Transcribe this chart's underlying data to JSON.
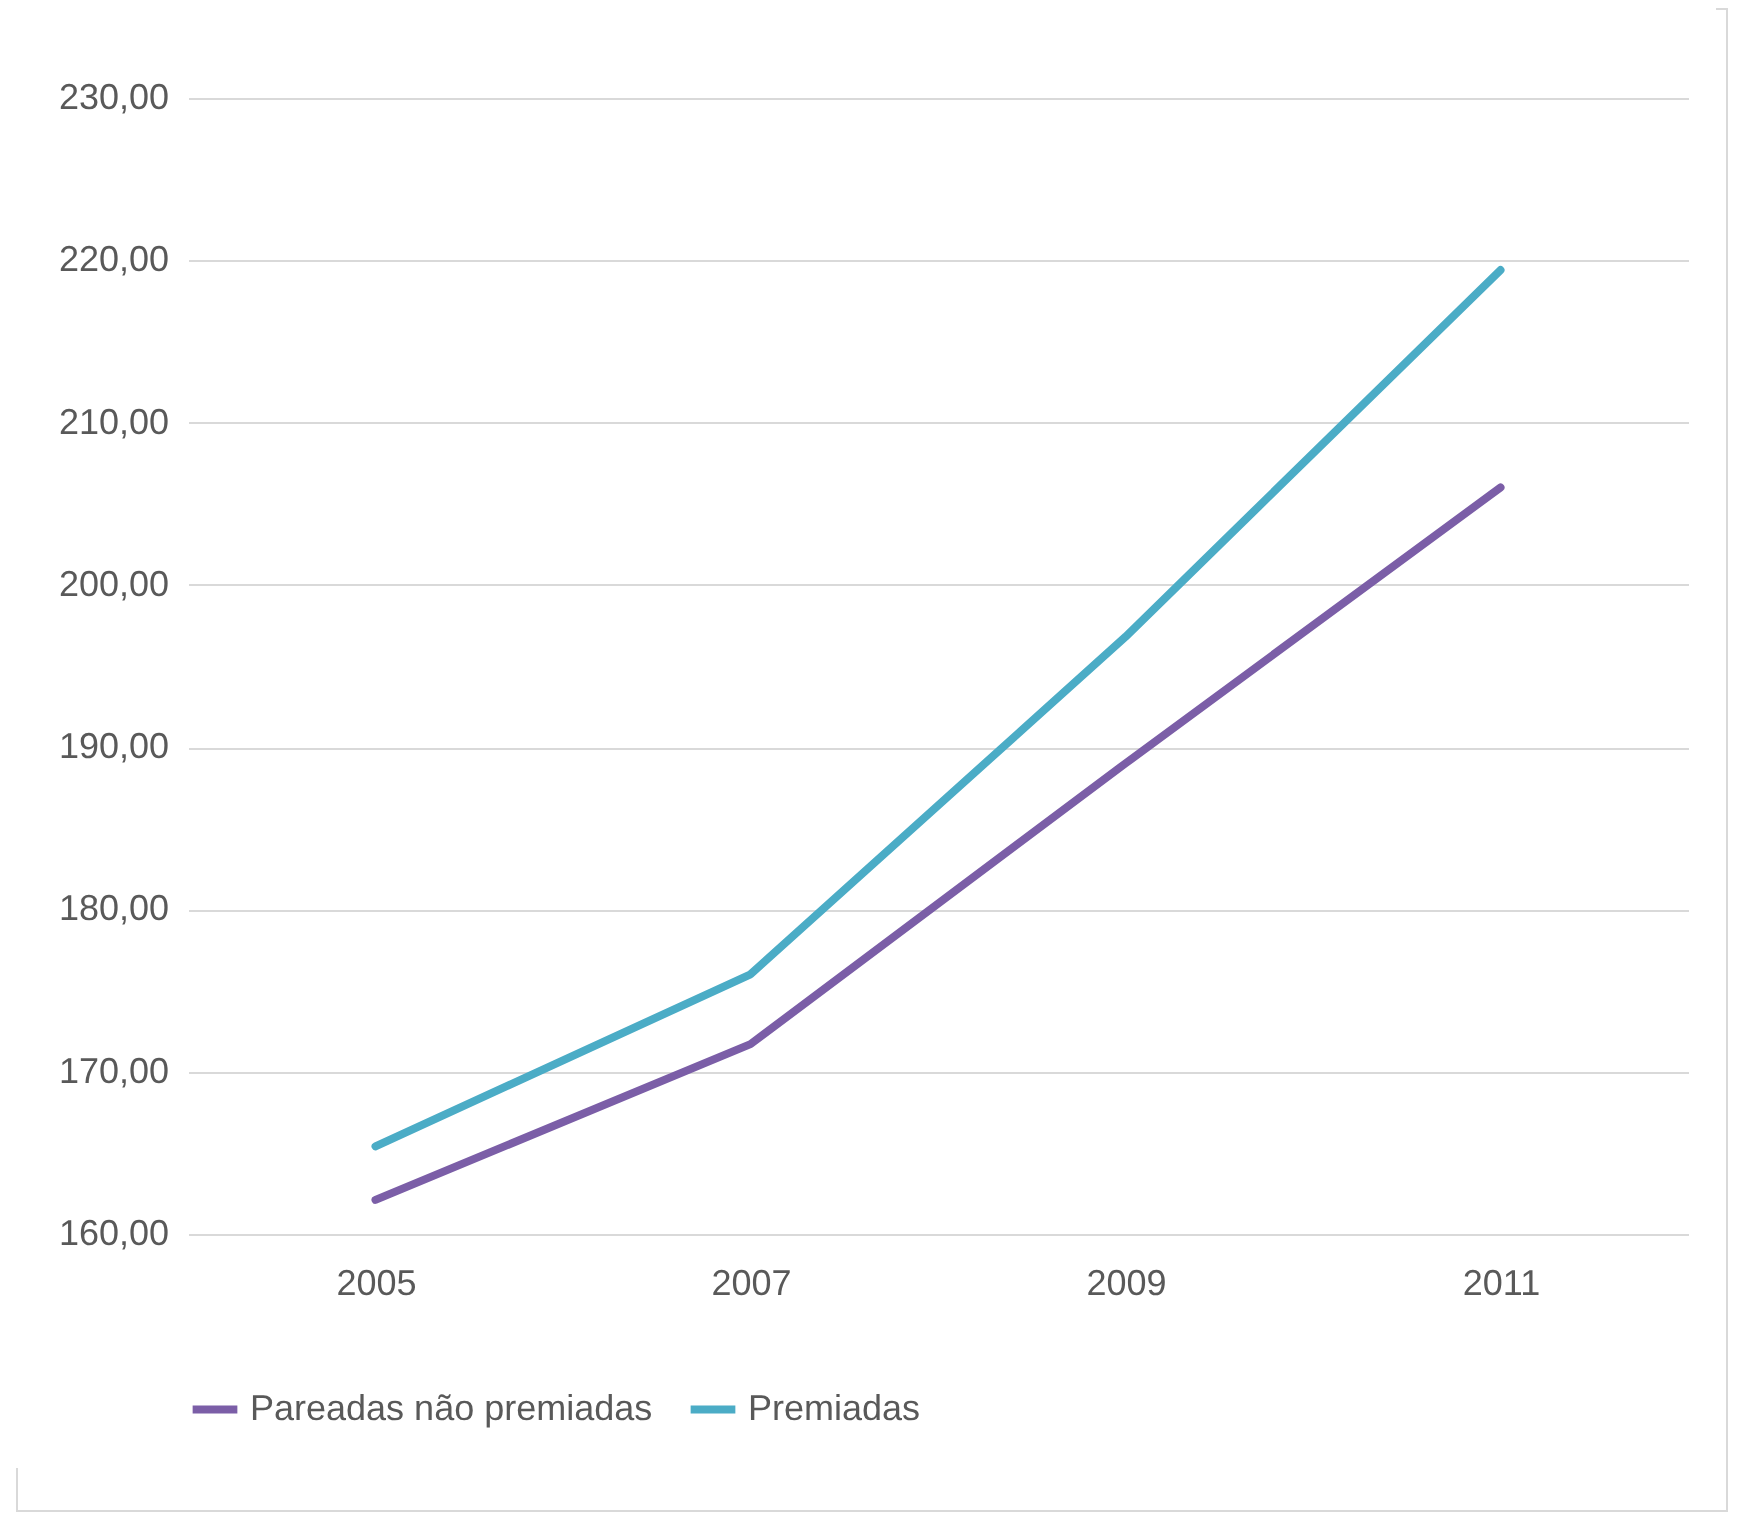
{
  "chart_data": {
    "type": "line",
    "categories": [
      "2005",
      "2007",
      "2009",
      "2011"
    ],
    "series": [
      {
        "name": "Pareadas não premiadas",
        "color": "#7b5ea7",
        "values": [
          162.1,
          171.7,
          189.0,
          206.0
        ]
      },
      {
        "name": "Premiadas",
        "color": "#4bacc6",
        "values": [
          165.4,
          176.0,
          196.8,
          219.4
        ]
      }
    ],
    "ylim": [
      160,
      230
    ],
    "yticks": [
      {
        "value": 160,
        "label": "160,00"
      },
      {
        "value": 170,
        "label": "170,00"
      },
      {
        "value": 180,
        "label": "180,00"
      },
      {
        "value": 190,
        "label": "190,00"
      },
      {
        "value": 200,
        "label": "200,00"
      },
      {
        "value": 210,
        "label": "210,00"
      },
      {
        "value": 220,
        "label": "220,00"
      },
      {
        "value": 230,
        "label": "230,00"
      }
    ],
    "grid": "y",
    "legend": "bottom",
    "marker": "none",
    "line_style": "solid"
  }
}
